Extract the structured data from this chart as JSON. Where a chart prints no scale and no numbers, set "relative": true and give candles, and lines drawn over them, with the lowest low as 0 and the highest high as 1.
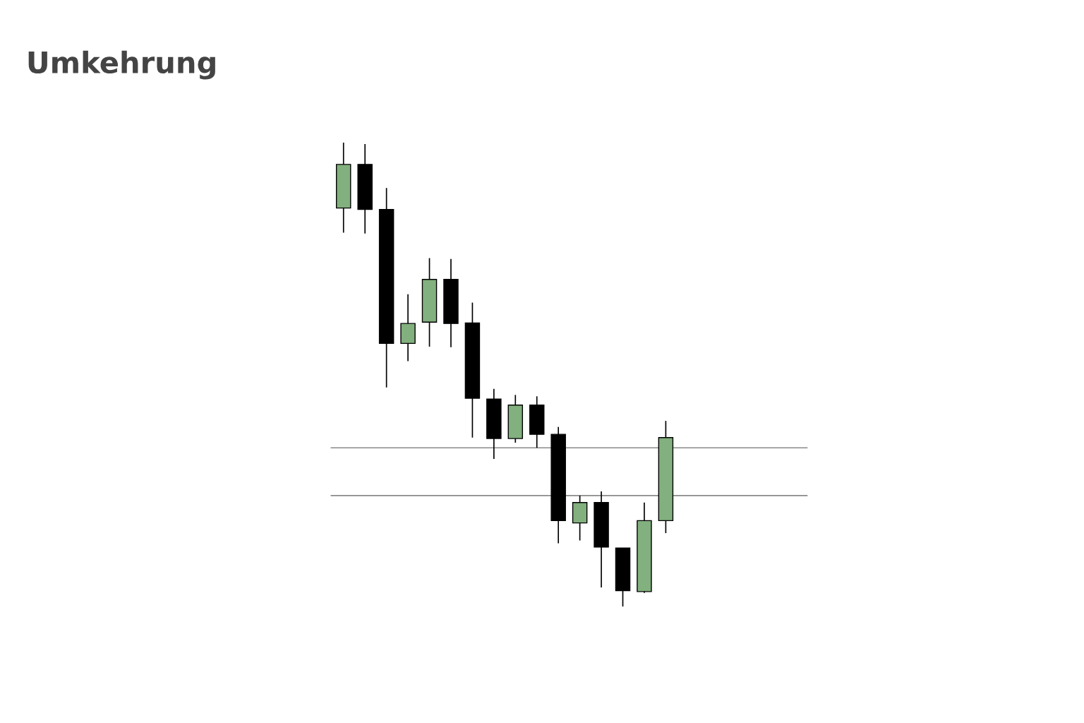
{
  "chart_data": {
    "type": "candlestick",
    "title": "Umkehrung",
    "relative": true,
    "categories": [
      null,
      null,
      null,
      null,
      null,
      null,
      null,
      null,
      null,
      null,
      null,
      null,
      null,
      null,
      null,
      null
    ],
    "ohlc": [
      [
        0.859,
        1.0,
        0.806,
        0.953
      ],
      [
        0.953,
        0.997,
        0.804,
        0.856
      ],
      [
        0.856,
        0.902,
        0.472,
        0.567
      ],
      [
        0.567,
        0.673,
        0.529,
        0.61
      ],
      [
        0.613,
        0.751,
        0.56,
        0.705
      ],
      [
        0.705,
        0.749,
        0.559,
        0.61
      ],
      [
        0.611,
        0.655,
        0.364,
        0.449
      ],
      [
        0.447,
        0.469,
        0.318,
        0.362
      ],
      [
        0.362,
        0.456,
        0.353,
        0.434
      ],
      [
        0.434,
        0.453,
        0.342,
        0.371
      ],
      [
        0.371,
        0.387,
        0.136,
        0.185
      ],
      [
        0.18,
        0.239,
        0.142,
        0.224
      ],
      [
        0.224,
        0.248,
        0.041,
        0.128
      ],
      [
        0.126,
        0.126,
        0.0,
        0.034
      ],
      [
        0.032,
        0.224,
        0.029,
        0.185
      ],
      [
        0.185,
        0.4,
        0.158,
        0.364
      ]
    ],
    "colors": [
      "#82b07e",
      "#000000",
      "#000000",
      "#82b07e",
      "#82b07e",
      "#000000",
      "#000000",
      "#000000",
      "#82b07e",
      "#000000",
      "#000000",
      "#82b07e",
      "#000000",
      "#000000",
      "#82b07e",
      "#82b07e"
    ],
    "ref_lines": [
      {
        "axis": "y",
        "value": 0.342,
        "color": "#8a8a8a"
      },
      {
        "axis": "y",
        "value": 0.239,
        "color": "#8a8a8a"
      }
    ]
  }
}
